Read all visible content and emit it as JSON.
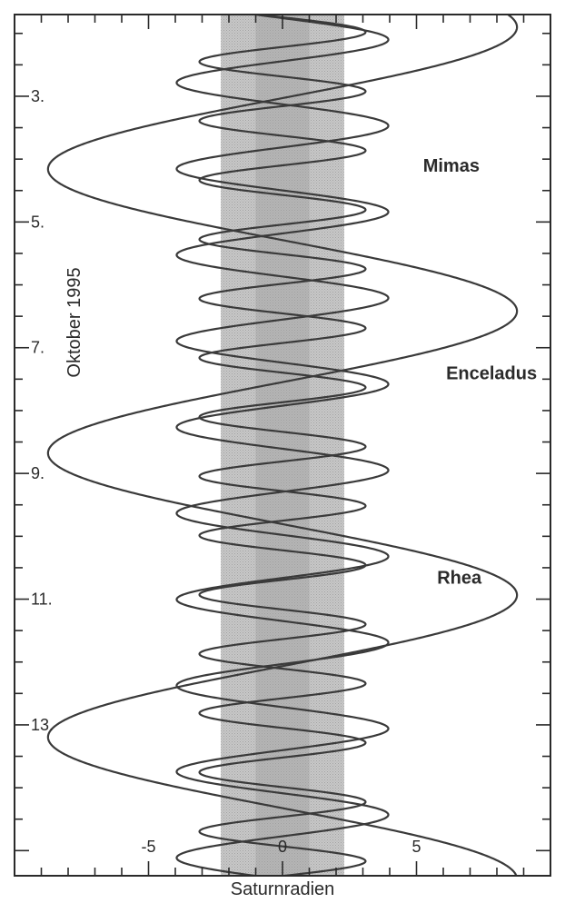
{
  "chart_data": {
    "type": "line",
    "orientation": "vertical-time",
    "title": "",
    "xlabel": "Saturnradien",
    "ylabel": "Oktober 1995",
    "xlim": [
      -10,
      10
    ],
    "ylim": [
      1.7,
      15.4
    ],
    "x_ticks": [
      -5,
      0,
      5
    ],
    "x_tick_labels": [
      "-5",
      "0",
      "5"
    ],
    "y_ticks": [
      3,
      5,
      7,
      9,
      11,
      13
    ],
    "y_tick_labels": [
      "3.",
      "5.",
      "7.",
      "9.",
      "11.",
      "13."
    ],
    "grid": false,
    "bands": [
      {
        "name": "ring-outer",
        "x": [
          -2.3,
          2.3
        ],
        "color": "#bcbcbc"
      },
      {
        "name": "ring-middle",
        "x": [
          -1.0,
          1.0
        ],
        "color": "#a9a9a9"
      }
    ],
    "series": [
      {
        "name": "Mimas",
        "amplitude": 3.1,
        "period_days": 0.942,
        "phase_day": 1.98,
        "color": "#3a3a3a"
      },
      {
        "name": "Enceladus",
        "amplitude": 3.95,
        "period_days": 1.37,
        "phase_day": 2.1,
        "color": "#3a3a3a"
      },
      {
        "name": "Rhea",
        "amplitude": 8.75,
        "period_days": 4.518,
        "phase_day": 1.9,
        "color": "#3a3a3a"
      }
    ],
    "annotations": [
      {
        "text": "Mimas",
        "x": 6.3,
        "y": 4.1
      },
      {
        "text": "Enceladus",
        "x": 7.8,
        "y": 7.4
      },
      {
        "text": "Rhea",
        "x": 6.6,
        "y": 10.65
      }
    ]
  }
}
